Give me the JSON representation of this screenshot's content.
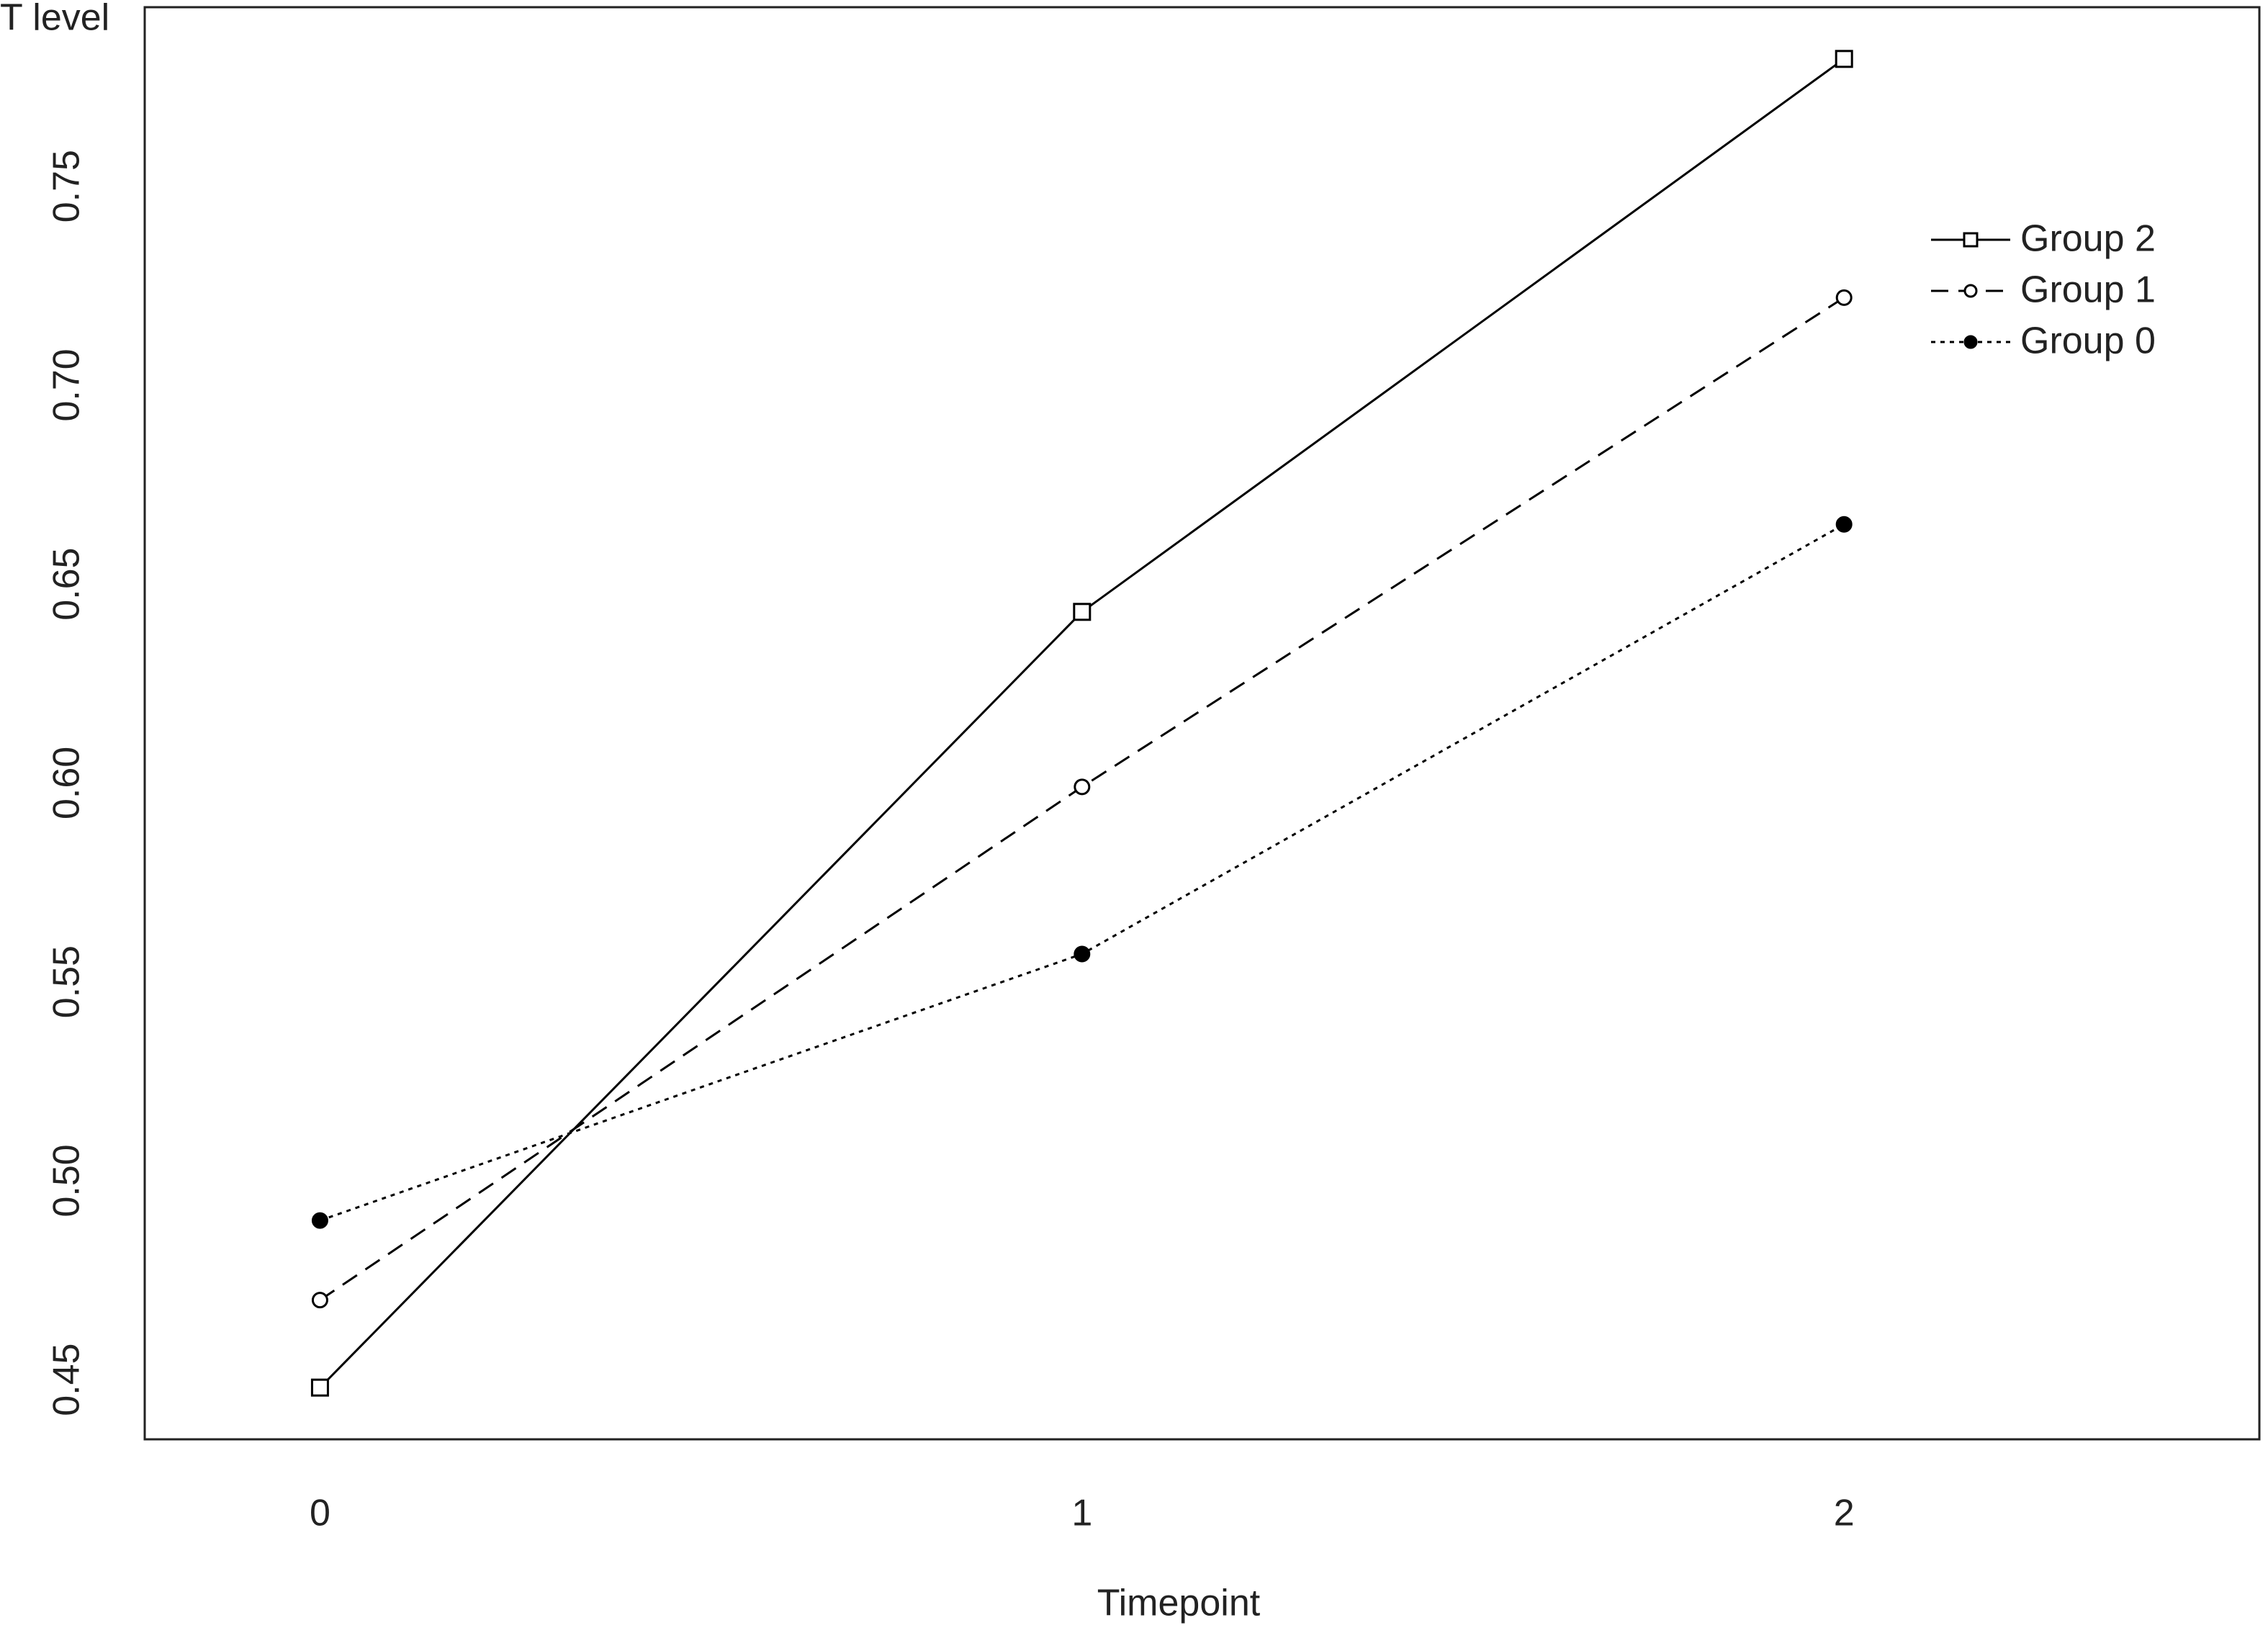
{
  "chart_data": {
    "type": "line",
    "title": "T level",
    "x_label": "Timepoint",
    "x": [
      0,
      1,
      2
    ],
    "xlim": [
      -0.23,
      2.545
    ],
    "xticks": [
      0,
      1,
      2
    ],
    "ylim": [
      0.435,
      0.795
    ],
    "yticks": [
      {
        "value": 0.45,
        "label": "0.45"
      },
      {
        "value": 0.5,
        "label": "0.50"
      },
      {
        "value": 0.55,
        "label": "0.55"
      },
      {
        "value": 0.6,
        "label": "0.60"
      },
      {
        "value": 0.65,
        "label": "0.65"
      },
      {
        "value": 0.7,
        "label": "0.70"
      },
      {
        "value": 0.75,
        "label": "0.75"
      }
    ],
    "grid": false,
    "legend": "upper right",
    "series": [
      {
        "name": "Group 2",
        "color": "#000000",
        "linestyle": "solid",
        "marker": "open-square",
        "values": [
          0.448,
          0.643,
          0.782
        ]
      },
      {
        "name": "Group 1",
        "color": "#000000",
        "linestyle": "dashed",
        "marker": "open-circle",
        "values": [
          0.47,
          0.599,
          0.722
        ]
      },
      {
        "name": "Group 0",
        "color": "#000000",
        "linestyle": "dotted",
        "marker": "filled-circle",
        "values": [
          0.49,
          0.557,
          0.665
        ]
      }
    ]
  }
}
